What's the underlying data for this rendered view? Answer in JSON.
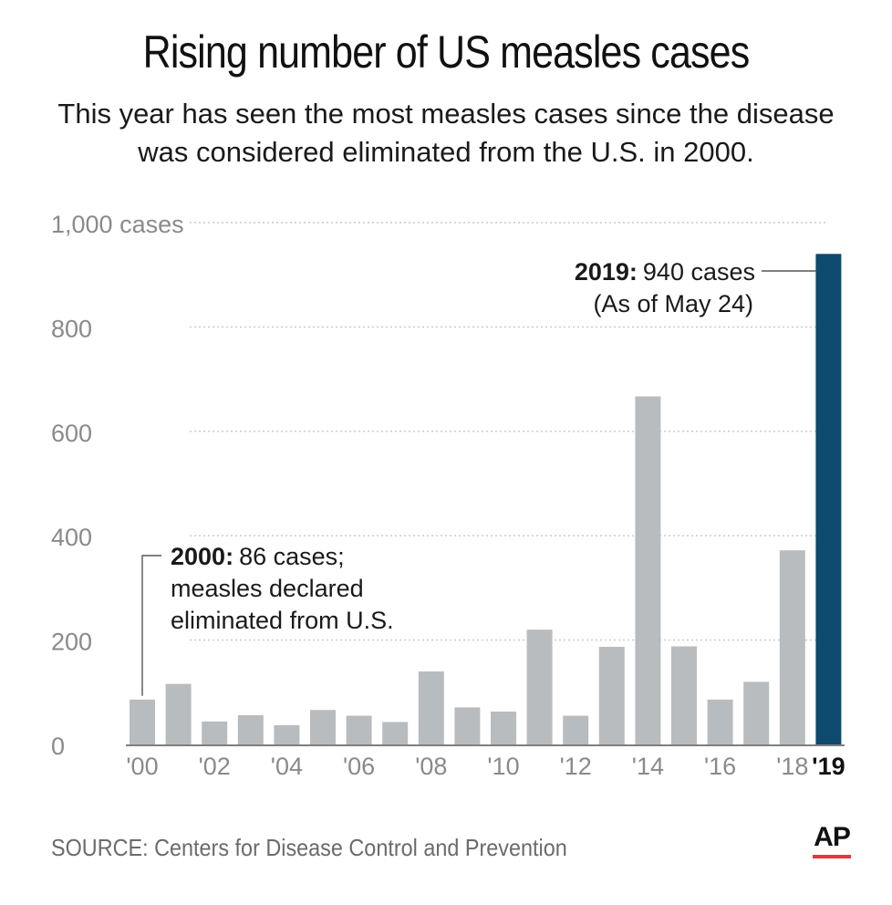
{
  "title": "Rising number of US measles cases",
  "subtitle": {
    "line1": "This year has seen the most measles cases since the disease",
    "line2": "was considered eliminated from the U.S. in 2000."
  },
  "source": "SOURCE: Centers for Disease Control and Prevention",
  "logo": "AP",
  "colors": {
    "bar": "#b9bcbe",
    "highlight": "#0e4a6e",
    "grid": "#c8c8c8",
    "axis_text": "#8a8a8a",
    "logo_accent": "#e8373f"
  },
  "chart_data": {
    "type": "bar",
    "title": "Rising number of US measles cases",
    "xlabel": "",
    "ylabel": "cases",
    "ylim": [
      0,
      1000
    ],
    "yticks": [
      {
        "value": 0,
        "label": "0"
      },
      {
        "value": 200,
        "label": "200"
      },
      {
        "value": 400,
        "label": "400"
      },
      {
        "value": 600,
        "label": "600"
      },
      {
        "value": 800,
        "label": "800"
      },
      {
        "value": 1000,
        "label": "1,000 cases"
      }
    ],
    "categories": [
      "2000",
      "2001",
      "2002",
      "2003",
      "2004",
      "2005",
      "2006",
      "2007",
      "2008",
      "2009",
      "2010",
      "2011",
      "2012",
      "2013",
      "2014",
      "2015",
      "2016",
      "2017",
      "2018",
      "2019"
    ],
    "tick_labels": [
      "'00",
      "",
      "'02",
      "",
      "'04",
      "",
      "'06",
      "",
      "'08",
      "",
      "'10",
      "",
      "'12",
      "",
      "'14",
      "",
      "'16",
      "",
      "'18",
      "'19"
    ],
    "values": [
      86,
      116,
      44,
      56,
      37,
      66,
      55,
      43,
      140,
      71,
      63,
      220,
      55,
      187,
      667,
      188,
      86,
      120,
      372,
      940
    ],
    "highlight_category": "2019",
    "annotations": [
      {
        "bold": "2000:",
        "lines": [
          "86 cases;",
          "measles declared",
          "eliminated from U.S."
        ]
      },
      {
        "bold": "2019:",
        "lines": [
          "940 cases",
          "(As of May 24)"
        ]
      }
    ]
  }
}
